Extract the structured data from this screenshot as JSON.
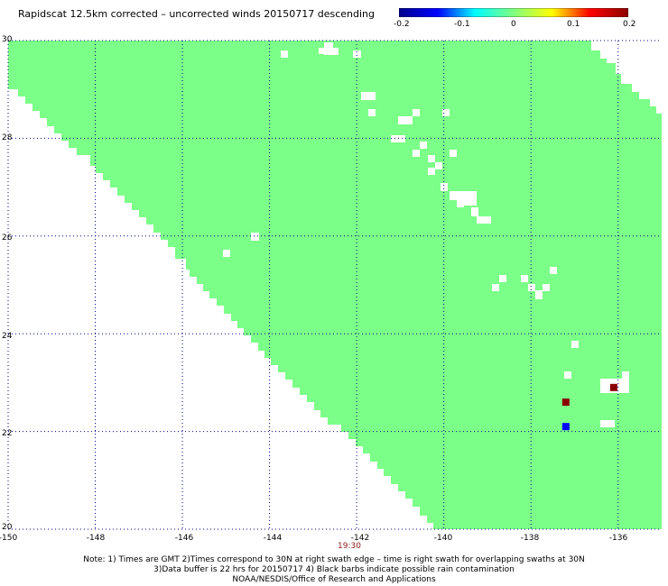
{
  "title": "Rapidscat 12.5km corrected – uncorrected winds 20150717 descending",
  "colorbar": {
    "labels": [
      "-0.2",
      "-0.1",
      "0",
      "0.1",
      "0.2"
    ],
    "range": [
      -0.2,
      0.2
    ],
    "colors": [
      "#00008b",
      "#0000ff",
      "#00ffff",
      "#80ff80",
      "#ffff00",
      "#ff0000",
      "#8b0000"
    ]
  },
  "map": {
    "lon_range": [
      -150,
      -135
    ],
    "lat_range": [
      20,
      30
    ],
    "lon_ticks": [
      "-150",
      "-148",
      "-146",
      "-144",
      "-142",
      "-140",
      "-138",
      "-136"
    ],
    "lat_ticks": [
      "30",
      "28",
      "26",
      "24",
      "22",
      "20"
    ],
    "field_color": "#7cff88",
    "grid_color": "#000080",
    "anomalies": [
      {
        "lon": -137.2,
        "lat": 22.6,
        "value": 0.2,
        "color": "#8b0000"
      },
      {
        "lon": -136.1,
        "lat": 22.9,
        "value": 0.2,
        "color": "#8b0000"
      },
      {
        "lon": -137.2,
        "lat": 22.1,
        "value": -0.15,
        "color": "#0000ff"
      }
    ]
  },
  "time_label": "19:30",
  "notes": [
    "Note: 1) Times are GMT 2)Times correspond to 30N at right swath edge – time is right swath for overlapping swaths at 30N",
    "3)Data buffer is 22 hrs for 20150717 4) Black barbs indicate possible rain contamination",
    "NOAA/NESDIS/Office of Research and Applications"
  ]
}
